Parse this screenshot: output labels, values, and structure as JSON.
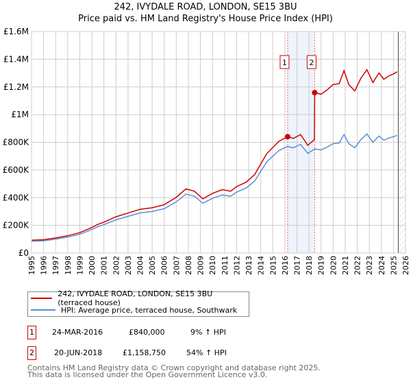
{
  "title_line1": "242, IVYDALE ROAD, LONDON, SE15 3BU",
  "title_line2": "Price paid vs. HM Land Registry's House Price Index (HPI)",
  "chart_data": {
    "type": "line",
    "xlim": [
      1995,
      2026
    ],
    "ylim": [
      0,
      1600000
    ],
    "x_ticks": [
      1995,
      1996,
      1997,
      1998,
      1999,
      2000,
      2001,
      2002,
      2003,
      2004,
      2005,
      2006,
      2007,
      2008,
      2009,
      2010,
      2011,
      2012,
      2013,
      2014,
      2015,
      2016,
      2017,
      2018,
      2019,
      2020,
      2021,
      2022,
      2023,
      2024,
      2025,
      2026
    ],
    "y_ticks": [
      {
        "v": 0,
        "label": "£0"
      },
      {
        "v": 200000,
        "label": "£200K"
      },
      {
        "v": 400000,
        "label": "£400K"
      },
      {
        "v": 600000,
        "label": "£600K"
      },
      {
        "v": 800000,
        "label": "£800K"
      },
      {
        "v": 1000000,
        "label": "£1M"
      },
      {
        "v": 1200000,
        "label": "£1.2M"
      },
      {
        "v": 1400000,
        "label": "£1.4M"
      },
      {
        "v": 1600000,
        "label": "£1.6M"
      }
    ],
    "grid": true,
    "forecast_from": 2025.4,
    "series": [
      {
        "name": "242, IVYDALE ROAD, LONDON, SE15 3BU (terraced house)",
        "color": "#cc0000",
        "points": [
          [
            1995,
            93000
          ],
          [
            1996,
            96000
          ],
          [
            1997,
            109000
          ],
          [
            1998,
            125000
          ],
          [
            1999,
            147000
          ],
          [
            2000,
            185000
          ],
          [
            2000.5,
            207000
          ],
          [
            2001,
            223000
          ],
          [
            2002,
            262000
          ],
          [
            2003,
            289000
          ],
          [
            2004,
            316000
          ],
          [
            2005,
            327000
          ],
          [
            2006,
            349000
          ],
          [
            2007,
            403000
          ],
          [
            2007.8,
            463000
          ],
          [
            2008.5,
            447000
          ],
          [
            2009.2,
            392000
          ],
          [
            2010,
            431000
          ],
          [
            2010.8,
            458000
          ],
          [
            2011.5,
            447000
          ],
          [
            2012,
            480000
          ],
          [
            2012.8,
            512000
          ],
          [
            2013.5,
            567000
          ],
          [
            2014,
            643000
          ],
          [
            2014.5,
            719000
          ],
          [
            2015,
            763000
          ],
          [
            2015.5,
            807000
          ],
          [
            2016.23,
            840000
          ],
          [
            2016.7,
            828000
          ],
          [
            2017.3,
            856000
          ],
          [
            2017.9,
            778000
          ],
          [
            2018.45,
            820000
          ],
          [
            2018.47,
            1158750
          ],
          [
            2019,
            1147000
          ],
          [
            2019.5,
            1178000
          ],
          [
            2020,
            1217000
          ],
          [
            2020.5,
            1224000
          ],
          [
            2020.9,
            1317000
          ],
          [
            2021.3,
            1217000
          ],
          [
            2021.8,
            1170000
          ],
          [
            2022.3,
            1263000
          ],
          [
            2022.8,
            1324000
          ],
          [
            2023.3,
            1232000
          ],
          [
            2023.8,
            1301000
          ],
          [
            2024.2,
            1255000
          ],
          [
            2024.6,
            1278000
          ],
          [
            2025,
            1294000
          ],
          [
            2025.3,
            1309000
          ]
        ]
      },
      {
        "name": "HPI: Average price, terraced house, Southwark",
        "color": "#5b8ed6",
        "points": [
          [
            1995,
            85000
          ],
          [
            1996,
            88000
          ],
          [
            1997,
            100000
          ],
          [
            1998,
            115000
          ],
          [
            1999,
            135000
          ],
          [
            2000,
            170000
          ],
          [
            2000.5,
            190000
          ],
          [
            2001,
            205000
          ],
          [
            2002,
            240000
          ],
          [
            2003,
            265000
          ],
          [
            2004,
            290000
          ],
          [
            2005,
            300000
          ],
          [
            2006,
            320000
          ],
          [
            2007,
            370000
          ],
          [
            2007.8,
            425000
          ],
          [
            2008.5,
            410000
          ],
          [
            2009.2,
            360000
          ],
          [
            2010,
            395000
          ],
          [
            2010.8,
            420000
          ],
          [
            2011.5,
            410000
          ],
          [
            2012,
            440000
          ],
          [
            2012.8,
            470000
          ],
          [
            2013.5,
            520000
          ],
          [
            2014,
            590000
          ],
          [
            2014.5,
            660000
          ],
          [
            2015,
            700000
          ],
          [
            2015.5,
            740000
          ],
          [
            2016.23,
            770000
          ],
          [
            2016.7,
            760000
          ],
          [
            2017.3,
            785000
          ],
          [
            2017.9,
            720000
          ],
          [
            2018.47,
            752000
          ],
          [
            2019,
            745000
          ],
          [
            2019.5,
            765000
          ],
          [
            2020,
            790000
          ],
          [
            2020.5,
            795000
          ],
          [
            2020.9,
            855000
          ],
          [
            2021.3,
            790000
          ],
          [
            2021.8,
            760000
          ],
          [
            2022.3,
            820000
          ],
          [
            2022.8,
            860000
          ],
          [
            2023.3,
            800000
          ],
          [
            2023.8,
            845000
          ],
          [
            2024.2,
            815000
          ],
          [
            2024.6,
            830000
          ],
          [
            2025,
            840000
          ],
          [
            2025.3,
            850000
          ]
        ]
      }
    ],
    "sales": [
      {
        "label": "1",
        "x": 2016.23,
        "y": 840000,
        "date": "24-MAR-2016",
        "price": "£840,000",
        "hpi": "9% ↑ HPI"
      },
      {
        "label": "2",
        "x": 2018.47,
        "y": 1158750,
        "date": "20-JUN-2018",
        "price": "£1,158,750",
        "hpi": "54% ↑ HPI"
      }
    ]
  },
  "legend": {
    "item1": "242, IVYDALE ROAD, LONDON, SE15 3BU (terraced house)",
    "item2": "HPI: Average price, terraced house, Southwark"
  },
  "footer_line1": "Contains HM Land Registry data © Crown copyright and database right 2025.",
  "footer_line2": "This data is licensed under the Open Government Licence v3.0."
}
